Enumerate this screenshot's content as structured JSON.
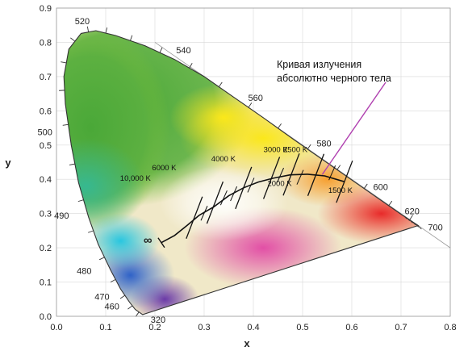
{
  "chart_data": {
    "type": "chromaticity-diagram",
    "xlabel": "x",
    "ylabel": "y",
    "xlim": [
      0.0,
      0.8
    ],
    "ylim": [
      0.0,
      0.9
    ],
    "x_ticks": [
      "0.0",
      "0.1",
      "0.2",
      "0.3",
      "0.4",
      "0.5",
      "0.6",
      "0.7",
      "0.8"
    ],
    "y_ticks": [
      "0.0",
      "0.1",
      "0.2",
      "0.3",
      "0.4",
      "0.5",
      "0.6",
      "0.7",
      "0.8",
      "0.9"
    ],
    "grid": true,
    "spectral_locus": [
      {
        "x": 0.175,
        "y": 0.005
      },
      {
        "x": 0.16,
        "y": 0.02
      },
      {
        "x": 0.148,
        "y": 0.042
      },
      {
        "x": 0.13,
        "y": 0.08
      },
      {
        "x": 0.11,
        "y": 0.135
      },
      {
        "x": 0.085,
        "y": 0.21
      },
      {
        "x": 0.065,
        "y": 0.29
      },
      {
        "x": 0.045,
        "y": 0.39
      },
      {
        "x": 0.03,
        "y": 0.5
      },
      {
        "x": 0.018,
        "y": 0.62
      },
      {
        "x": 0.015,
        "y": 0.7
      },
      {
        "x": 0.025,
        "y": 0.78
      },
      {
        "x": 0.05,
        "y": 0.826
      },
      {
        "x": 0.08,
        "y": 0.834
      },
      {
        "x": 0.12,
        "y": 0.82
      },
      {
        "x": 0.18,
        "y": 0.79
      },
      {
        "x": 0.24,
        "y": 0.75
      },
      {
        "x": 0.3,
        "y": 0.7
      },
      {
        "x": 0.36,
        "y": 0.64
      },
      {
        "x": 0.42,
        "y": 0.58
      },
      {
        "x": 0.48,
        "y": 0.518
      },
      {
        "x": 0.54,
        "y": 0.458
      },
      {
        "x": 0.6,
        "y": 0.398
      },
      {
        "x": 0.65,
        "y": 0.348
      },
      {
        "x": 0.7,
        "y": 0.298
      },
      {
        "x": 0.735,
        "y": 0.265
      }
    ],
    "wavelength_labels": [
      {
        "label": "320",
        "x": 0.175,
        "y": 0.005
      },
      {
        "label": "460",
        "x": 0.144,
        "y": 0.03
      },
      {
        "label": "470",
        "x": 0.124,
        "y": 0.058
      },
      {
        "label": "480",
        "x": 0.091,
        "y": 0.133
      },
      {
        "label": "490",
        "x": 0.045,
        "y": 0.295
      },
      {
        "label": "500",
        "x": 0.008,
        "y": 0.538
      },
      {
        "label": "520",
        "x": 0.074,
        "y": 0.834
      },
      {
        "label": "540",
        "x": 0.23,
        "y": 0.754
      },
      {
        "label": "560",
        "x": 0.373,
        "y": 0.624
      },
      {
        "label": "580",
        "x": 0.512,
        "y": 0.487
      },
      {
        "label": "600",
        "x": 0.627,
        "y": 0.373
      },
      {
        "label": "620",
        "x": 0.691,
        "y": 0.308
      },
      {
        "label": "700",
        "x": 0.735,
        "y": 0.265
      }
    ],
    "planckian_locus": [
      {
        "x": 0.213,
        "y": 0.215
      },
      {
        "x": 0.24,
        "y": 0.236
      },
      {
        "x": 0.265,
        "y": 0.265
      },
      {
        "x": 0.29,
        "y": 0.295
      },
      {
        "x": 0.32,
        "y": 0.32
      },
      {
        "x": 0.35,
        "y": 0.352
      },
      {
        "x": 0.38,
        "y": 0.375
      },
      {
        "x": 0.41,
        "y": 0.392
      },
      {
        "x": 0.44,
        "y": 0.403
      },
      {
        "x": 0.475,
        "y": 0.413
      },
      {
        "x": 0.51,
        "y": 0.415
      },
      {
        "x": 0.545,
        "y": 0.41
      },
      {
        "x": 0.585,
        "y": 0.393
      }
    ],
    "temperature_marks": [
      {
        "label": "∞",
        "x": 0.213,
        "y": 0.215
      },
      {
        "label": "10,000 K",
        "x": 0.28,
        "y": 0.288
      },
      {
        "label": "6000 K",
        "x": 0.322,
        "y": 0.332
      },
      {
        "label": "4000 K",
        "x": 0.38,
        "y": 0.375
      },
      {
        "label": "3000 K",
        "x": 0.437,
        "y": 0.404
      },
      {
        "label": "2500 K",
        "x": 0.477,
        "y": 0.414
      },
      {
        "label": "2000 K",
        "x": 0.527,
        "y": 0.413
      },
      {
        "label": "1500 K",
        "x": 0.585,
        "y": 0.393
      }
    ],
    "annotation": {
      "line1": "Кривая излучения",
      "line2": "абсолютно черного тела",
      "point": {
        "x": 0.54,
        "y": 0.414
      }
    },
    "colors": {
      "green": "#4aa838",
      "yellow": "#f2e21a",
      "orange": "#f4a23a",
      "red": "#e82a2a",
      "magenta": "#d94fa0",
      "blue": "#3a7fd0",
      "cyan": "#2ec4d8",
      "white_point": "#ffffff",
      "planck_line": "#111111",
      "annotation_line": "#b040b0",
      "grid": "#d8d8d8"
    }
  }
}
